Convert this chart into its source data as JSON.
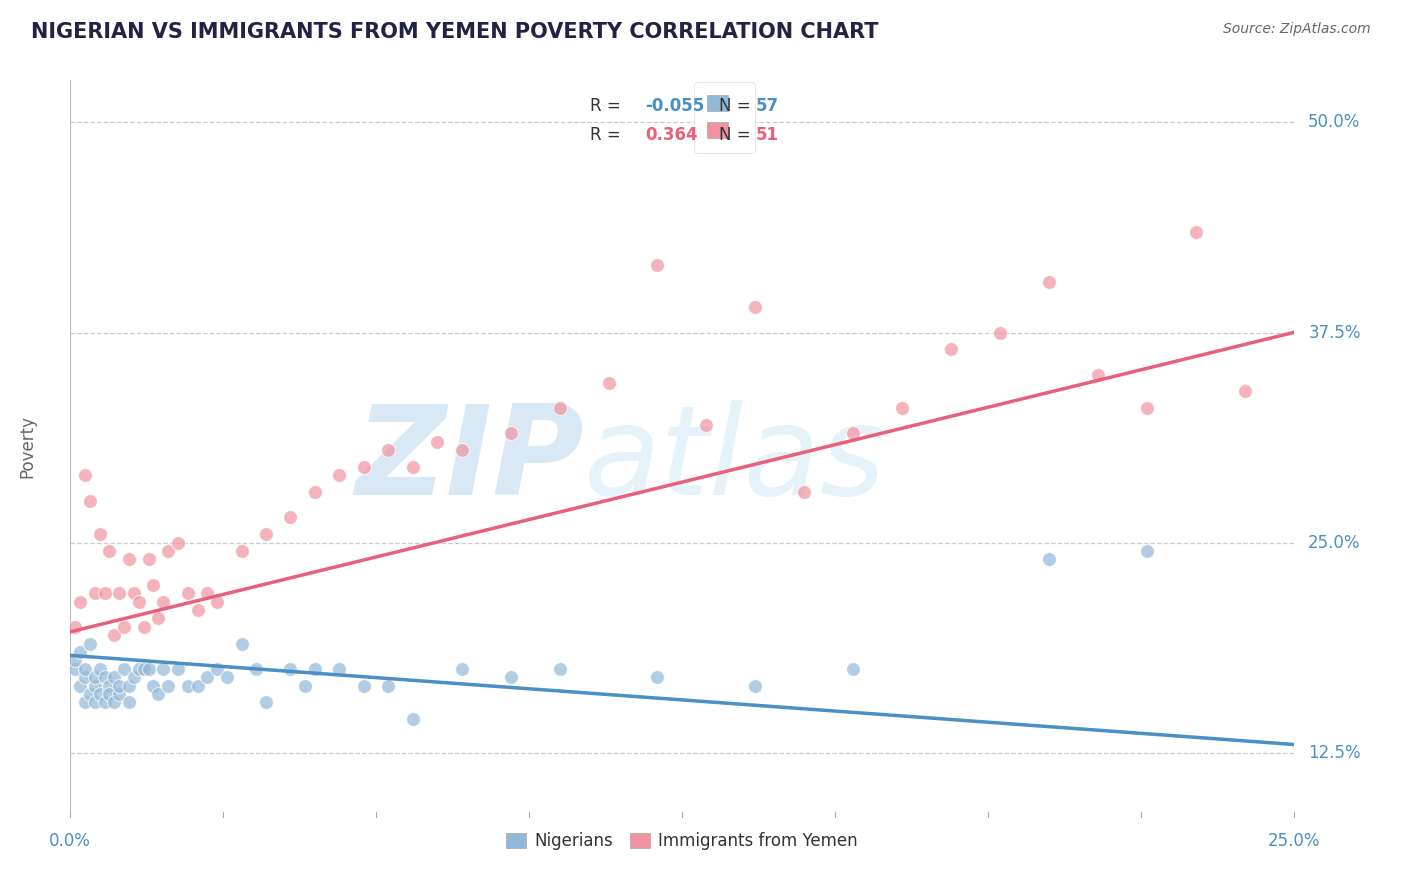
{
  "title": "NIGERIAN VS IMMIGRANTS FROM YEMEN POVERTY CORRELATION CHART",
  "source_text": "Source: ZipAtlas.com",
  "watermark_zip": "ZIP",
  "watermark_atlas": "atlas",
  "ylabel_label": "Poverty",
  "legend_labels": [
    "Nigerians",
    "Immigrants from Yemen"
  ],
  "blue_color": "#92b8d8",
  "pink_color": "#f0929f",
  "blue_line_color": "#4a90c4",
  "pink_line_color": "#e8607a",
  "grid_color": "#cccccc",
  "background_color": "#ffffff",
  "xmin": 0.0,
  "xmax": 0.25,
  "ymin": 0.09,
  "ymax": 0.525,
  "yticks": [
    0.125,
    0.25,
    0.375,
    0.5
  ],
  "ytick_labels": [
    "12.5%",
    "25.0%",
    "37.5%",
    "50.0%"
  ],
  "R_nigerian": -0.055,
  "N_nigerian": 57,
  "R_yemeni": 0.364,
  "N_yemeni": 51,
  "nig_x": [
    0.001,
    0.001,
    0.002,
    0.002,
    0.003,
    0.003,
    0.003,
    0.004,
    0.004,
    0.005,
    0.005,
    0.005,
    0.006,
    0.006,
    0.007,
    0.007,
    0.008,
    0.008,
    0.009,
    0.009,
    0.01,
    0.01,
    0.011,
    0.012,
    0.012,
    0.013,
    0.014,
    0.015,
    0.016,
    0.017,
    0.018,
    0.019,
    0.02,
    0.022,
    0.024,
    0.026,
    0.028,
    0.03,
    0.032,
    0.035,
    0.038,
    0.04,
    0.045,
    0.048,
    0.05,
    0.055,
    0.06,
    0.065,
    0.07,
    0.08,
    0.09,
    0.1,
    0.12,
    0.14,
    0.16,
    0.2,
    0.22
  ],
  "nig_y": [
    0.175,
    0.18,
    0.165,
    0.185,
    0.17,
    0.155,
    0.175,
    0.16,
    0.19,
    0.165,
    0.17,
    0.155,
    0.175,
    0.16,
    0.155,
    0.17,
    0.165,
    0.16,
    0.17,
    0.155,
    0.16,
    0.165,
    0.175,
    0.165,
    0.155,
    0.17,
    0.175,
    0.175,
    0.175,
    0.165,
    0.16,
    0.175,
    0.165,
    0.175,
    0.165,
    0.165,
    0.17,
    0.175,
    0.17,
    0.19,
    0.175,
    0.155,
    0.175,
    0.165,
    0.175,
    0.175,
    0.165,
    0.165,
    0.145,
    0.175,
    0.17,
    0.175,
    0.17,
    0.165,
    0.175,
    0.24,
    0.245
  ],
  "yem_x": [
    0.001,
    0.002,
    0.003,
    0.004,
    0.005,
    0.006,
    0.007,
    0.008,
    0.009,
    0.01,
    0.011,
    0.012,
    0.013,
    0.014,
    0.015,
    0.016,
    0.017,
    0.018,
    0.019,
    0.02,
    0.022,
    0.024,
    0.026,
    0.028,
    0.03,
    0.035,
    0.04,
    0.045,
    0.05,
    0.055,
    0.06,
    0.065,
    0.07,
    0.075,
    0.08,
    0.09,
    0.1,
    0.11,
    0.12,
    0.13,
    0.14,
    0.15,
    0.16,
    0.17,
    0.18,
    0.19,
    0.2,
    0.21,
    0.22,
    0.23,
    0.24
  ],
  "yem_y": [
    0.2,
    0.215,
    0.29,
    0.275,
    0.22,
    0.255,
    0.22,
    0.245,
    0.195,
    0.22,
    0.2,
    0.24,
    0.22,
    0.215,
    0.2,
    0.24,
    0.225,
    0.205,
    0.215,
    0.245,
    0.25,
    0.22,
    0.21,
    0.22,
    0.215,
    0.245,
    0.255,
    0.265,
    0.28,
    0.29,
    0.295,
    0.305,
    0.295,
    0.31,
    0.305,
    0.315,
    0.33,
    0.345,
    0.415,
    0.32,
    0.39,
    0.28,
    0.315,
    0.33,
    0.365,
    0.375,
    0.405,
    0.35,
    0.33,
    0.435,
    0.34
  ],
  "nig_line_y0": 0.183,
  "nig_line_y1": 0.13,
  "yem_line_y0": 0.197,
  "yem_line_y1": 0.375
}
